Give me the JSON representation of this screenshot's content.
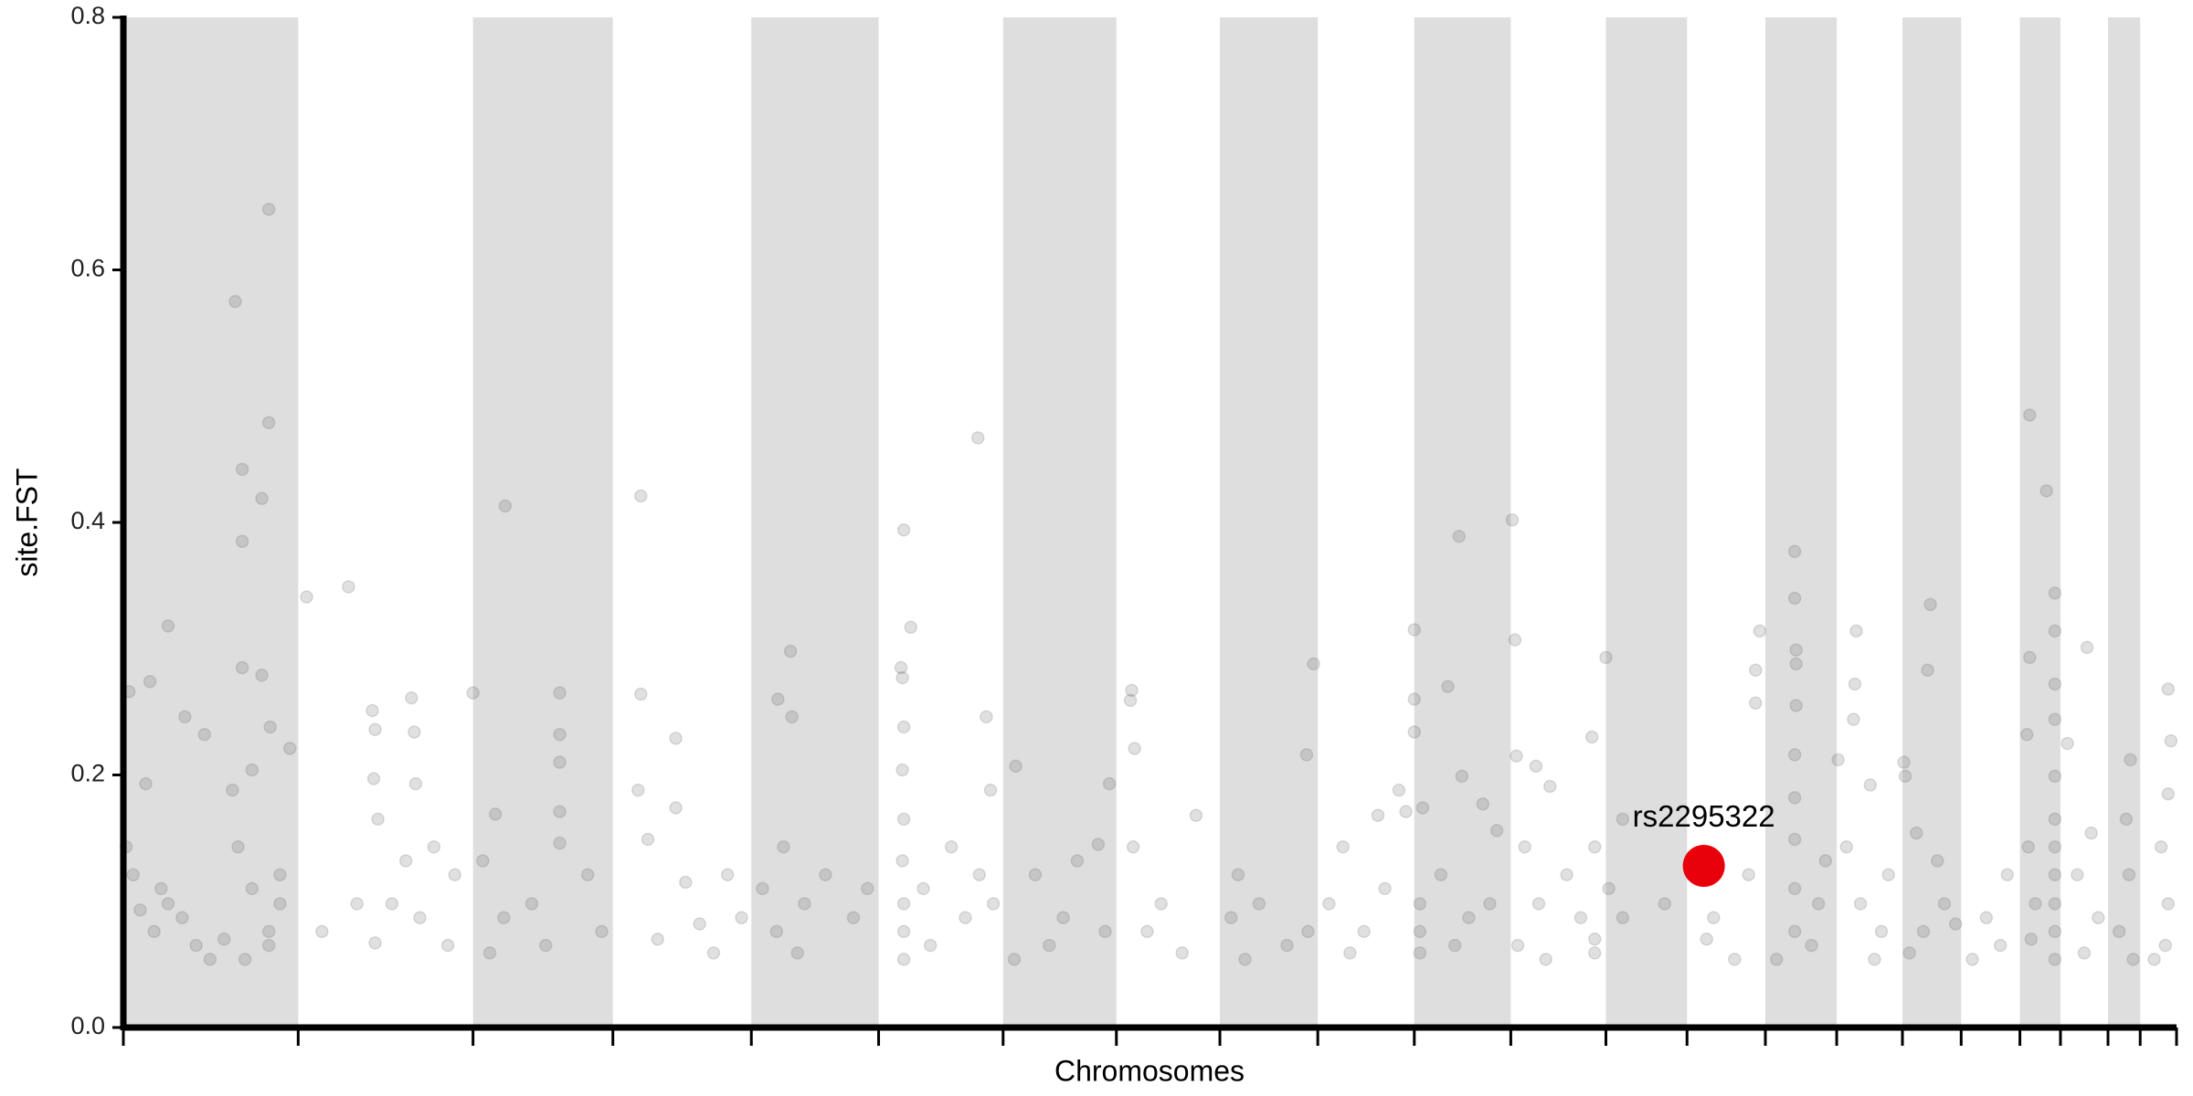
{
  "chart_data": {
    "type": "scatter",
    "xlabel": "Chromosomes",
    "ylabel": "site.FST",
    "xlim": [
      0,
      1468
    ],
    "ylim": [
      0,
      0.8
    ],
    "yticks": [
      {
        "value": 0,
        "label": "0.0"
      },
      0.2,
      0.4,
      0.6,
      0.8
    ],
    "xticks": [
      0,
      125,
      250,
      350,
      449,
      540,
      629,
      710,
      784,
      854,
      923,
      992,
      1060,
      1118,
      1174,
      1225,
      1272,
      1314,
      1356,
      1385,
      1419,
      1442,
      1468
    ],
    "band_color": "#dedede",
    "color": "#555555",
    "point_opacity": 0.18,
    "x": [
      4,
      16,
      19,
      32,
      44,
      58,
      80,
      85,
      85,
      99,
      104,
      104,
      85,
      99,
      105,
      119,
      78,
      92,
      7,
      12,
      22,
      32,
      42,
      52,
      82,
      92,
      104,
      104,
      112,
      2,
      62,
      72,
      87,
      112,
      27,
      131,
      161,
      178,
      180,
      206,
      208,
      179,
      182,
      209,
      142,
      180,
      192,
      212,
      222,
      237,
      167,
      202,
      232,
      250,
      273,
      266,
      312,
      312,
      312,
      312,
      312,
      257,
      272,
      292,
      332,
      342,
      262,
      302,
      370,
      370,
      368,
      395,
      395,
      375,
      402,
      382,
      412,
      432,
      442,
      422,
      477,
      468,
      478,
      472,
      457,
      487,
      467,
      502,
      522,
      532,
      482,
      558,
      563,
      556,
      557,
      558,
      557,
      558,
      557,
      558,
      558,
      558,
      592,
      612,
      577,
      602,
      622,
      572,
      611,
      617,
      638,
      620,
      652,
      672,
      682,
      697,
      662,
      637,
      702,
      721,
      720,
      723,
      705,
      742,
      767,
      722,
      757,
      732,
      851,
      846,
      797,
      792,
      812,
      832,
      847,
      802,
      897,
      912,
      872,
      862,
      887,
      902,
      917,
      877,
      923,
      923,
      923,
      947,
      955,
      929,
      957,
      972,
      982,
      927,
      927,
      927,
      942,
      962,
      977,
      952,
      993,
      995,
      996,
      1010,
      1020,
      1002,
      1012,
      1032,
      1042,
      997,
      1052,
      1017,
      1060,
      1050,
      1072,
      1052,
      1062,
      1072,
      1052,
      1102,
      1137,
      1132,
      1162,
      1152,
      1170,
      1167,
      1167,
      1195,
      1195,
      1196,
      1196,
      1196,
      1195,
      1195,
      1195,
      1195,
      1195,
      1182,
      1212,
      1217,
      1207,
      1239,
      1238,
      1237,
      1226,
      1249,
      1232,
      1242,
      1257,
      1262,
      1252,
      1292,
      1290,
      1273,
      1274,
      1282,
      1297,
      1302,
      1287,
      1310,
      1277,
      1332,
      1342,
      1347,
      1322,
      1363,
      1375,
      1363,
      1361,
      1381,
      1381,
      1381,
      1381,
      1381,
      1381,
      1381,
      1381,
      1381,
      1381,
      1381,
      1362,
      1367,
      1364,
      1390,
      1404,
      1407,
      1397,
      1412,
      1402,
      1435,
      1432,
      1434,
      1427,
      1437,
      1462,
      1464,
      1462,
      1457,
      1462,
      1460,
      1452
    ],
    "values": [
      0.266,
      0.193,
      0.274,
      0.318,
      0.246,
      0.232,
      0.575,
      0.442,
      0.385,
      0.419,
      0.479,
      0.648,
      0.285,
      0.279,
      0.238,
      0.221,
      0.188,
      0.204,
      0.121,
      0.093,
      0.076,
      0.098,
      0.087,
      0.065,
      0.143,
      0.11,
      0.076,
      0.065,
      0.098,
      0.143,
      0.054,
      0.07,
      0.054,
      0.121,
      0.11,
      0.341,
      0.349,
      0.251,
      0.236,
      0.261,
      0.234,
      0.197,
      0.165,
      0.193,
      0.076,
      0.067,
      0.098,
      0.087,
      0.143,
      0.121,
      0.098,
      0.132,
      0.065,
      0.265,
      0.413,
      0.169,
      0.265,
      0.232,
      0.21,
      0.171,
      0.146,
      0.132,
      0.087,
      0.098,
      0.121,
      0.076,
      0.059,
      0.065,
      0.421,
      0.264,
      0.188,
      0.229,
      0.174,
      0.149,
      0.115,
      0.07,
      0.082,
      0.121,
      0.087,
      0.059,
      0.298,
      0.26,
      0.246,
      0.143,
      0.11,
      0.098,
      0.076,
      0.121,
      0.087,
      0.11,
      0.059,
      0.394,
      0.317,
      0.285,
      0.277,
      0.238,
      0.204,
      0.165,
      0.132,
      0.098,
      0.076,
      0.054,
      0.143,
      0.121,
      0.065,
      0.087,
      0.098,
      0.11,
      0.467,
      0.246,
      0.207,
      0.188,
      0.121,
      0.087,
      0.132,
      0.145,
      0.065,
      0.054,
      0.076,
      0.267,
      0.259,
      0.221,
      0.193,
      0.098,
      0.168,
      0.143,
      0.059,
      0.076,
      0.288,
      0.216,
      0.121,
      0.087,
      0.098,
      0.065,
      0.076,
      0.054,
      0.168,
      0.188,
      0.143,
      0.098,
      0.076,
      0.11,
      0.171,
      0.059,
      0.315,
      0.26,
      0.234,
      0.27,
      0.389,
      0.174,
      0.199,
      0.177,
      0.156,
      0.098,
      0.076,
      0.059,
      0.121,
      0.087,
      0.098,
      0.065,
      0.402,
      0.307,
      0.215,
      0.207,
      0.191,
      0.143,
      0.098,
      0.121,
      0.087,
      0.065,
      0.07,
      0.054,
      0.293,
      0.23,
      0.165,
      0.143,
      0.11,
      0.087,
      0.059,
      0.098,
      0.087,
      0.07,
      0.121,
      0.054,
      0.314,
      0.283,
      0.257,
      0.377,
      0.34,
      0.299,
      0.288,
      0.255,
      0.216,
      0.182,
      0.149,
      0.11,
      0.076,
      0.054,
      0.098,
      0.132,
      0.065,
      0.314,
      0.272,
      0.244,
      0.212,
      0.192,
      0.143,
      0.098,
      0.076,
      0.121,
      0.054,
      0.335,
      0.283,
      0.21,
      0.199,
      0.154,
      0.132,
      0.098,
      0.076,
      0.082,
      0.059,
      0.087,
      0.065,
      0.121,
      0.054,
      0.485,
      0.425,
      0.293,
      0.232,
      0.344,
      0.314,
      0.272,
      0.244,
      0.199,
      0.165,
      0.143,
      0.121,
      0.098,
      0.076,
      0.054,
      0.143,
      0.098,
      0.07,
      0.225,
      0.301,
      0.154,
      0.121,
      0.087,
      0.059,
      0.212,
      0.165,
      0.121,
      0.076,
      0.054,
      0.268,
      0.227,
      0.185,
      0.143,
      0.098,
      0.065,
      0.054
    ],
    "highlight": {
      "x": 1130,
      "value": 0.128,
      "label": "rs2295322",
      "color": "#e8000b"
    }
  }
}
